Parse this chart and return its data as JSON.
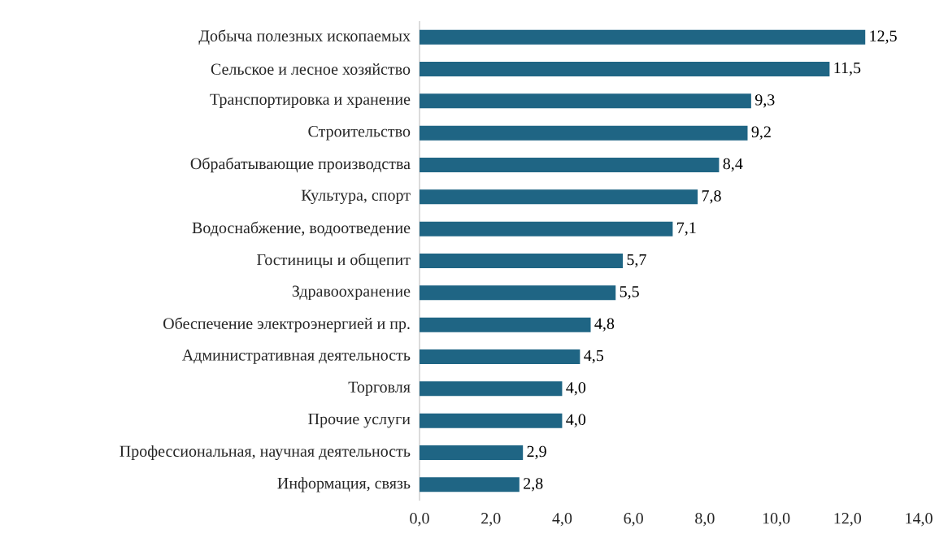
{
  "chart_data": {
    "type": "bar",
    "orientation": "horizontal",
    "categories": [
      "Добыча полезных  ископаемых",
      "Сельское и лесное хозяйство",
      "Транспортировка и хранение",
      "Строительство",
      "Обрабатывающие производства",
      "Культура,  спорт",
      "Водоснабжение, водоотведение",
      "Гостиницы и общепит",
      "Здравоохранение",
      "Обеспечение электроэнергией и пр.",
      "Административная деятельность",
      "Торговля",
      "Прочие услуги",
      "Профессиональная, научная деятельность",
      "Информация, связь"
    ],
    "values": [
      12.5,
      11.5,
      9.3,
      9.2,
      8.4,
      7.8,
      7.1,
      5.7,
      5.5,
      4.8,
      4.5,
      4.0,
      4.0,
      2.9,
      2.8
    ],
    "value_labels": [
      "12,5",
      "11,5",
      "9,3",
      "9,2",
      "8,4",
      "7,8",
      "7,1",
      "5,7",
      "5,5",
      "4,8",
      "4,5",
      "4,0",
      "4,0",
      "2,9",
      "2,8"
    ],
    "color": "#1f6584",
    "xlim": [
      0,
      14
    ],
    "xticks": [
      {
        "value": 0,
        "label": "0,0"
      },
      {
        "value": 2,
        "label": "2,0"
      },
      {
        "value": 4,
        "label": "4,0"
      },
      {
        "value": 6,
        "label": "6,0"
      },
      {
        "value": 8,
        "label": "8,0"
      },
      {
        "value": 10,
        "label": "10,0"
      },
      {
        "value": 12,
        "label": "12,0"
      },
      {
        "value": 14,
        "label": "14,0"
      }
    ]
  }
}
